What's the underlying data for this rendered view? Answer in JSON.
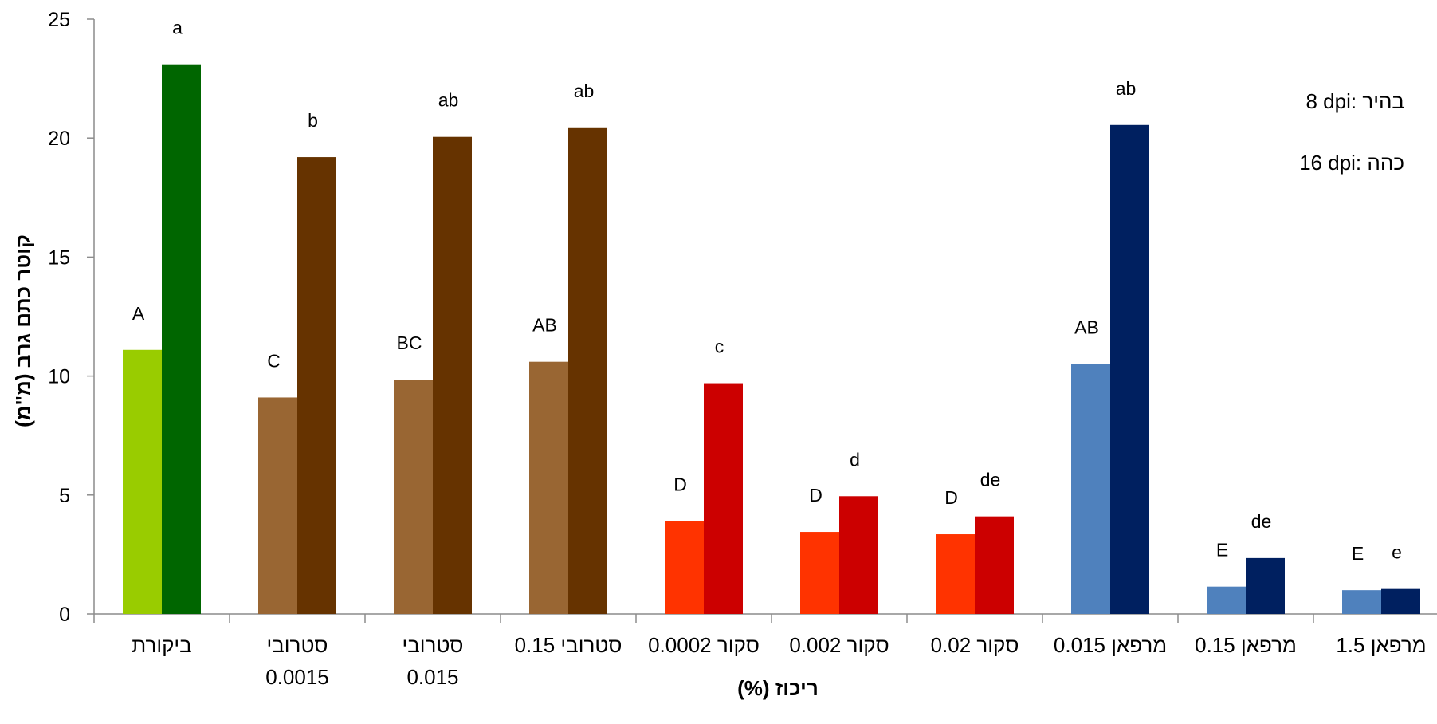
{
  "chart_data": {
    "type": "bar",
    "title": "",
    "xlabel": "ריכוז (%)",
    "ylabel": "קוטר כתם גרב (מ\"מ)",
    "ylim": [
      0,
      25
    ],
    "yticks": [
      0,
      5,
      10,
      15,
      20,
      25
    ],
    "grid": false,
    "legend_position": "top-right",
    "legend": [
      "8 dpi: בהיר",
      "16 dpi: כהה"
    ],
    "categories": [
      [
        "ביקורת"
      ],
      [
        "סטרובי",
        "0.0015"
      ],
      [
        "סטרובי",
        "0.015"
      ],
      [
        "סטרובי 0.15"
      ],
      [
        "סקור 0.0002"
      ],
      [
        "סקור 0.002"
      ],
      [
        "סקור 0.02"
      ],
      [
        "מרפאן 0.015"
      ],
      [
        "מרפאן 0.15"
      ],
      [
        "מרפאן 1.5"
      ]
    ],
    "series": [
      {
        "values": [
          11.1,
          9.1,
          9.85,
          10.6,
          3.9,
          3.45,
          3.35,
          10.5,
          1.15,
          1.0
        ],
        "letters": [
          "A",
          "C",
          "BC",
          "AB",
          "D",
          "D",
          "D",
          "AB",
          "E",
          "E"
        ],
        "colors": [
          "#99cc00",
          "#996633",
          "#996633",
          "#996633",
          "#ff3300",
          "#ff3300",
          "#ff3300",
          "#4f81bd",
          "#4f81bd",
          "#4f81bd"
        ]
      },
      {
        "values": [
          23.1,
          19.2,
          20.05,
          20.45,
          9.7,
          4.95,
          4.1,
          20.55,
          2.35,
          1.05
        ],
        "letters": [
          "a",
          "b",
          "ab",
          "ab",
          "c",
          "d",
          "de",
          "ab",
          "de",
          "e"
        ],
        "colors": [
          "#006600",
          "#663300",
          "#663300",
          "#663300",
          "#cc0000",
          "#cc0000",
          "#cc0000",
          "#002060",
          "#002060",
          "#002060"
        ]
      }
    ]
  }
}
